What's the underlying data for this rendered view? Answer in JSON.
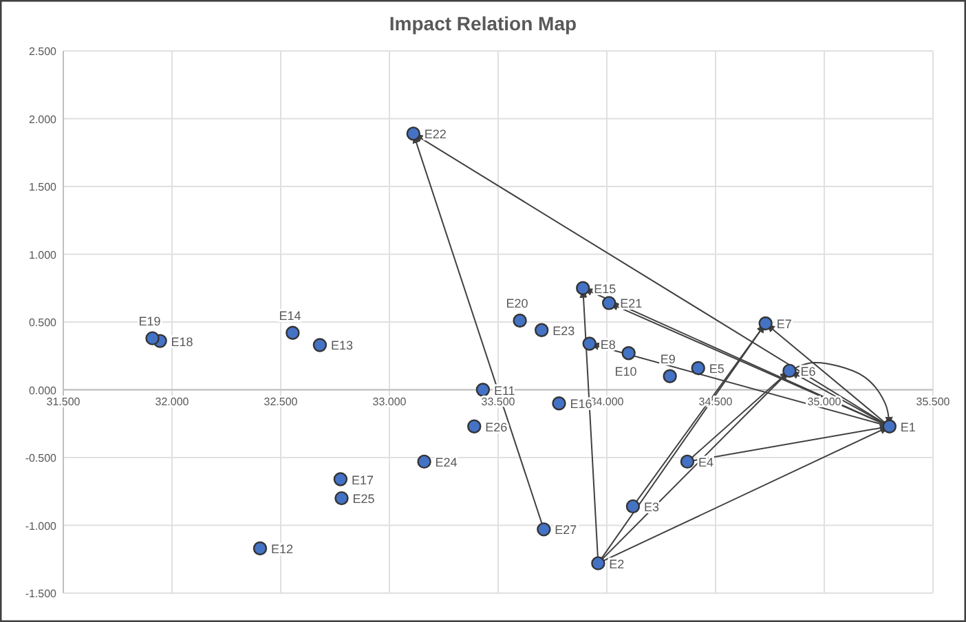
{
  "chart_data": {
    "type": "scatter",
    "title": "Impact Relation Map",
    "xlim": [
      31.5,
      35.5
    ],
    "xticks": [
      {
        "value": 31.5,
        "label": "31.500"
      },
      {
        "value": 32,
        "label": "32.000"
      },
      {
        "value": 32.5,
        "label": "32.500"
      },
      {
        "value": 33,
        "label": "33.000"
      },
      {
        "value": 33.5,
        "label": "33.500"
      },
      {
        "value": 34,
        "label": "34.000"
      },
      {
        "value": 34.5,
        "label": "34.500"
      },
      {
        "value": 35,
        "label": "35.000"
      },
      {
        "value": 35.5,
        "label": "35.500"
      }
    ],
    "ylim": [
      -1.5,
      2.5
    ],
    "yticks": [
      {
        "value": -1.5,
        "label": "-1.500"
      },
      {
        "value": -1,
        "label": "-1.000"
      },
      {
        "value": -0.5,
        "label": "-0.500"
      },
      {
        "value": 0,
        "label": "0.000"
      },
      {
        "value": 0.5,
        "label": "0.500"
      },
      {
        "value": 1,
        "label": "1.000"
      },
      {
        "value": 1.5,
        "label": "1.500"
      },
      {
        "value": 2,
        "label": "2.000"
      },
      {
        "value": 2.5,
        "label": "2.500"
      }
    ],
    "grid": true,
    "series": [
      {
        "type": "line",
        "color": "#404040",
        "x": [
          35.3,
          33.11
        ],
        "values": [
          -0.27,
          1.89
        ]
      },
      {
        "type": "line",
        "color": "#404040",
        "x": [
          35.3,
          33.89
        ],
        "values": [
          -0.27,
          0.75
        ]
      },
      {
        "type": "line",
        "color": "#404040",
        "x": [
          35.3,
          34.01
        ],
        "values": [
          -0.27,
          0.64
        ]
      },
      {
        "type": "line",
        "color": "#404040",
        "x": [
          35.3,
          33.92
        ],
        "values": [
          -0.27,
          0.34
        ]
      },
      {
        "type": "line",
        "color": "#404040",
        "x": [
          35.3,
          34.73
        ],
        "values": [
          -0.27,
          0.49
        ]
      },
      {
        "type": "line",
        "color": "#404040",
        "x": [
          35.3,
          34.84
        ],
        "values": [
          -0.27,
          0.14
        ]
      },
      {
        "type": "line",
        "color": "#404040",
        "x": [
          34.84,
          34.95,
          35.18,
          35.28,
          35.3
        ],
        "values": [
          0.14,
          0.2,
          0.1,
          -0.1,
          -0.27
        ]
      },
      {
        "type": "line",
        "color": "#404040",
        "x": [
          34.37,
          35.3
        ],
        "values": [
          -0.53,
          -0.27
        ]
      },
      {
        "type": "line",
        "color": "#404040",
        "x": [
          33.96,
          35.3
        ],
        "values": [
          -1.28,
          -0.27
        ]
      },
      {
        "type": "line",
        "color": "#404040",
        "x": [
          33.96,
          33.89
        ],
        "values": [
          -1.28,
          0.75
        ]
      },
      {
        "type": "line",
        "color": "#404040",
        "x": [
          33.96,
          34.73
        ],
        "values": [
          -1.28,
          0.49
        ]
      },
      {
        "type": "line",
        "color": "#404040",
        "x": [
          34.12,
          34.73
        ],
        "values": [
          -0.86,
          0.49
        ]
      },
      {
        "type": "line",
        "color": "#404040",
        "x": [
          33.96,
          34.84
        ],
        "values": [
          -1.28,
          0.14
        ]
      },
      {
        "type": "line",
        "color": "#404040",
        "x": [
          34.37,
          34.84
        ],
        "values": [
          -0.53,
          0.14
        ]
      },
      {
        "type": "line",
        "color": "#404040",
        "x": [
          33.71,
          33.11
        ],
        "values": [
          -1.03,
          1.89
        ]
      },
      {
        "color": "#4472c4",
        "marker": "circle",
        "x": [
          35.3,
          33.96,
          34.12,
          34.37,
          34.42,
          34.84,
          34.73,
          33.92,
          34.29,
          34.1,
          33.43,
          32.405,
          32.68,
          32.555,
          33.89,
          33.78,
          32.775,
          31.945,
          31.91,
          33.6,
          34.01,
          33.11,
          33.7,
          33.16,
          32.78,
          33.39,
          33.71
        ],
        "values": [
          -0.27,
          -1.28,
          -0.86,
          -0.53,
          0.16,
          0.14,
          0.49,
          0.34,
          0.1,
          0.27,
          0.0,
          -1.17,
          0.33,
          0.42,
          0.75,
          -0.1,
          -0.66,
          0.36,
          0.38,
          0.51,
          0.64,
          1.89,
          0.44,
          -0.53,
          -0.8,
          -0.27,
          -1.03
        ]
      }
    ],
    "annotations": [
      {
        "text": "E1",
        "x": 35.3,
        "y": -0.27
      },
      {
        "text": "E2",
        "x": 33.96,
        "y": -1.28
      },
      {
        "text": "E3",
        "x": 34.12,
        "y": -0.86
      },
      {
        "text": "E4",
        "x": 34.37,
        "y": -0.53
      },
      {
        "text": "E5",
        "x": 34.42,
        "y": 0.16
      },
      {
        "text": "E6",
        "x": 34.84,
        "y": 0.14
      },
      {
        "text": "E7",
        "x": 34.73,
        "y": 0.49
      },
      {
        "text": "E8",
        "x": 33.92,
        "y": 0.34
      },
      {
        "text": "E9",
        "x": 34.29,
        "y": 0.1
      },
      {
        "text": "E10",
        "x": 34.1,
        "y": 0.27
      },
      {
        "text": "E11",
        "x": 33.43,
        "y": 0.0
      },
      {
        "text": "E12",
        "x": 32.405,
        "y": -1.17
      },
      {
        "text": "E13",
        "x": 32.68,
        "y": 0.33
      },
      {
        "text": "E14",
        "x": 32.555,
        "y": 0.42
      },
      {
        "text": "E15",
        "x": 33.89,
        "y": 0.75
      },
      {
        "text": "E16",
        "x": 33.78,
        "y": -0.1
      },
      {
        "text": "E17",
        "x": 32.775,
        "y": -0.66
      },
      {
        "text": "E18",
        "x": 31.945,
        "y": 0.36
      },
      {
        "text": "E19",
        "x": 31.91,
        "y": 0.38
      },
      {
        "text": "E20",
        "x": 33.6,
        "y": 0.51
      },
      {
        "text": "E21",
        "x": 34.01,
        "y": 0.64
      },
      {
        "text": "E22",
        "x": 33.11,
        "y": 1.89
      },
      {
        "text": "E23",
        "x": 33.7,
        "y": 0.44
      },
      {
        "text": "E24",
        "x": 33.16,
        "y": -0.53
      },
      {
        "text": "E25",
        "x": 32.78,
        "y": -0.8
      },
      {
        "text": "E26",
        "x": 33.39,
        "y": -0.27
      },
      {
        "text": "E27",
        "x": 33.71,
        "y": -1.03
      }
    ]
  }
}
